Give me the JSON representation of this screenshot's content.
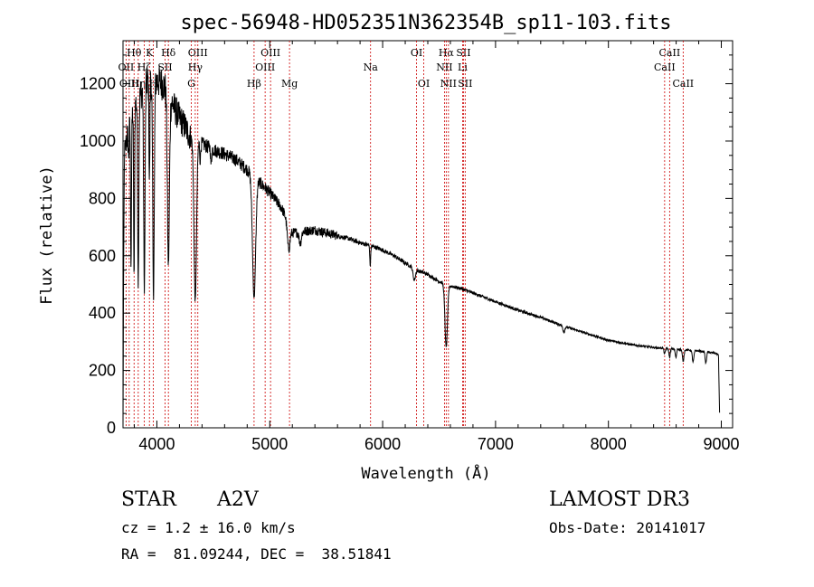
{
  "chart_data": {
    "type": "line",
    "title": "spec-56948-HD052351N362354B_sp11-103.fits",
    "xlabel": "Wavelength (Å)",
    "ylabel": "Flux (relative)",
    "xlim": [
      3700,
      9100
    ],
    "ylim": [
      0,
      1350
    ],
    "xticks": [
      4000,
      5000,
      6000,
      7000,
      8000,
      9000
    ],
    "yticks": [
      0,
      200,
      400,
      600,
      800,
      1000,
      1200
    ],
    "continuum": [
      [
        3700,
        0
      ],
      [
        3703,
        350
      ],
      [
        3712,
        950
      ],
      [
        3730,
        1000
      ],
      [
        3760,
        1060
      ],
      [
        3800,
        1120
      ],
      [
        3850,
        1160
      ],
      [
        3900,
        1200
      ],
      [
        3950,
        1220
      ],
      [
        4000,
        1210
      ],
      [
        4050,
        1200
      ],
      [
        4100,
        1170
      ],
      [
        4150,
        1120
      ],
      [
        4200,
        1080
      ],
      [
        4250,
        1050
      ],
      [
        4300,
        1010
      ],
      [
        4400,
        990
      ],
      [
        4500,
        970
      ],
      [
        4600,
        955
      ],
      [
        4700,
        935
      ],
      [
        4800,
        900
      ],
      [
        4900,
        860
      ],
      [
        5000,
        820
      ],
      [
        5100,
        770
      ],
      [
        5150,
        730
      ],
      [
        5200,
        680
      ],
      [
        5300,
        685
      ],
      [
        5400,
        690
      ],
      [
        5500,
        680
      ],
      [
        5600,
        670
      ],
      [
        5700,
        660
      ],
      [
        5800,
        645
      ],
      [
        5900,
        635
      ],
      [
        6000,
        620
      ],
      [
        6100,
        600
      ],
      [
        6200,
        575
      ],
      [
        6300,
        550
      ],
      [
        6400,
        535
      ],
      [
        6500,
        510
      ],
      [
        6600,
        495
      ],
      [
        6700,
        485
      ],
      [
        6800,
        470
      ],
      [
        7000,
        440
      ],
      [
        7200,
        410
      ],
      [
        7400,
        385
      ],
      [
        7600,
        355
      ],
      [
        7800,
        330
      ],
      [
        8000,
        305
      ],
      [
        8200,
        290
      ],
      [
        8400,
        280
      ],
      [
        8600,
        275
      ],
      [
        8800,
        268
      ],
      [
        8950,
        260
      ],
      [
        8975,
        255
      ],
      [
        8985,
        40
      ]
    ],
    "absorption_lines": [
      [
        3750,
        90,
        4
      ],
      [
        3771,
        500,
        4
      ],
      [
        3798,
        600,
        4
      ],
      [
        3835,
        650,
        5
      ],
      [
        3889,
        700,
        6
      ],
      [
        3934,
        350,
        4
      ],
      [
        3970,
        750,
        7
      ],
      [
        4102,
        600,
        9
      ],
      [
        4340,
        560,
        11
      ],
      [
        4384,
        60,
        4
      ],
      [
        4481,
        60,
        4
      ],
      [
        4861,
        420,
        14
      ],
      [
        5167,
        90,
        12
      ],
      [
        5270,
        40,
        10
      ],
      [
        5890,
        70,
        4
      ],
      [
        6280,
        40,
        10
      ],
      [
        6563,
        220,
        11
      ],
      [
        7605,
        20,
        8
      ],
      [
        8498,
        20,
        6
      ],
      [
        8542,
        30,
        6
      ],
      [
        8598,
        30,
        6
      ],
      [
        8662,
        40,
        7
      ],
      [
        8750,
        40,
        7
      ],
      [
        8863,
        40,
        6
      ]
    ],
    "line_markers": [
      {
        "name": "OII",
        "wl": 3727,
        "tier": 1
      },
      {
        "name": "OIII",
        "wl": 3755,
        "tier": 2
      },
      {
        "name": "Hθ",
        "wl": 3798,
        "tier": 0
      },
      {
        "name": "Hη",
        "wl": 3835,
        "tier": 2
      },
      {
        "name": "Hζ",
        "wl": 3889,
        "tier": 1
      },
      {
        "name": "K",
        "wl": 3934,
        "tier": 0
      },
      {
        "name": "SII",
        "wl": 4072,
        "tier": 1
      },
      {
        "name": "H",
        "wl": 3969,
        "tier": 2
      },
      {
        "name": "Hδ",
        "wl": 4102,
        "tier": 0
      },
      {
        "name": "G",
        "wl": 4305,
        "tier": 2
      },
      {
        "name": "OIII",
        "wl": 4363,
        "tier": 0
      },
      {
        "name": "Hγ",
        "wl": 4340,
        "tier": 1
      },
      {
        "name": "Hβ",
        "wl": 4861,
        "tier": 2
      },
      {
        "name": "OIII",
        "wl": 5007,
        "tier": 0
      },
      {
        "name": "OIII",
        "wl": 4959,
        "tier": 1
      },
      {
        "name": "Mg",
        "wl": 5175,
        "tier": 2
      },
      {
        "name": "Na",
        "wl": 5893,
        "tier": 1
      },
      {
        "name": "OI",
        "wl": 6300,
        "tier": 0
      },
      {
        "name": "OI",
        "wl": 6364,
        "tier": 2
      },
      {
        "name": "Hα",
        "wl": 6563,
        "tier": 0
      },
      {
        "name": "SII",
        "wl": 6716,
        "tier": 0
      },
      {
        "name": "NII",
        "wl": 6548,
        "tier": 1
      },
      {
        "name": "Li",
        "wl": 6708,
        "tier": 1
      },
      {
        "name": "NII",
        "wl": 6583,
        "tier": 2
      },
      {
        "name": "SII",
        "wl": 6731,
        "tier": 2
      },
      {
        "name": "CaII",
        "wl": 8542,
        "tier": 0
      },
      {
        "name": "CaII",
        "wl": 8498,
        "tier": 1
      },
      {
        "name": "CaII",
        "wl": 8662,
        "tier": 2
      }
    ],
    "marker_color": "#cc0000"
  },
  "info": {
    "object_class": "STAR",
    "subclass": "A2V",
    "survey": "LAMOST DR3",
    "redshift": "cz = 1.2 ± 16.0 km/s",
    "obs_date": "Obs-Date: 20141017",
    "coords": "RA =  81.09244, DEC =  38.51841"
  }
}
